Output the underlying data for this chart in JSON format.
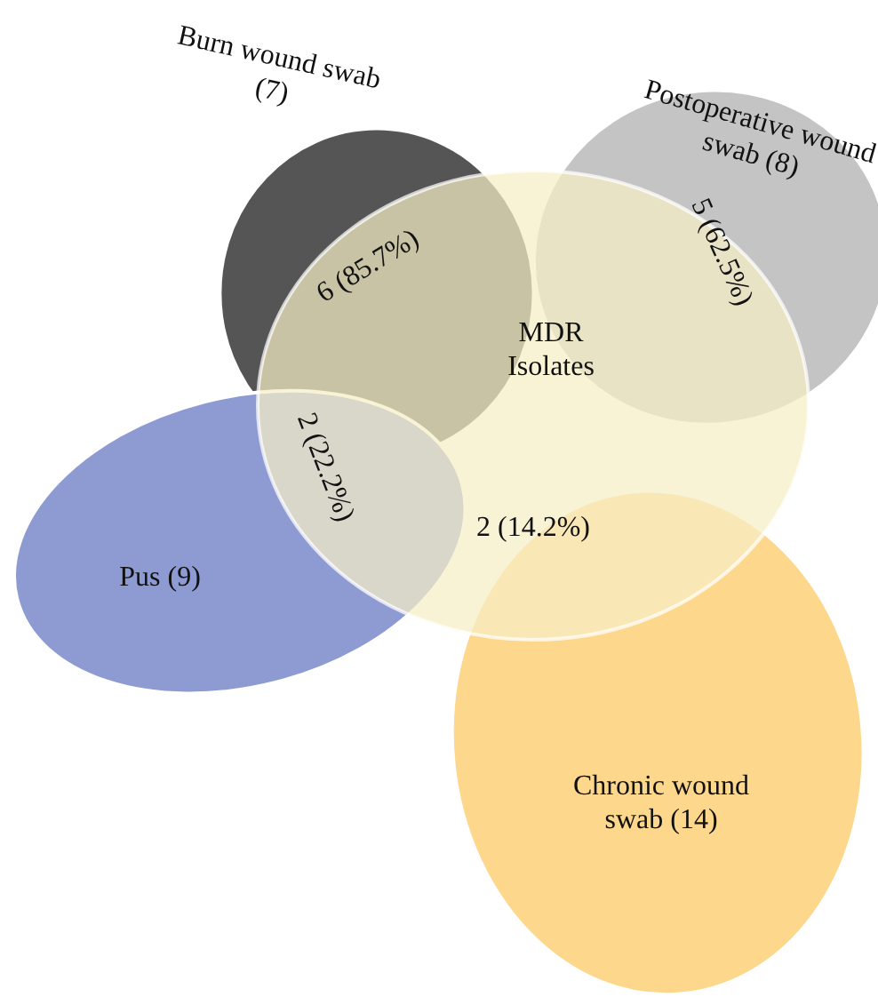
{
  "chart_data": {
    "type": "other",
    "categories": [
      "Burn wound swab",
      "Postoperative wound\nswab",
      "Pus",
      "Chronic wound\nswab",
      "MDR\nIsolates"
    ],
    "values": [
      7,
      8,
      9,
      14,
      null
    ],
    "value_labels": [
      "(7)",
      "(8)",
      "(9)",
      "(14)",
      null
    ],
    "colors": [
      "#555555",
      "#c4c4c4",
      "#8e9bd2",
      "#fdd78c",
      "#f6eec6"
    ],
    "annotations": [
      "6 (85.7%)",
      "5 (62.5%)",
      "2 (22.2%)",
      "2 (14.2%)"
    ]
  }
}
